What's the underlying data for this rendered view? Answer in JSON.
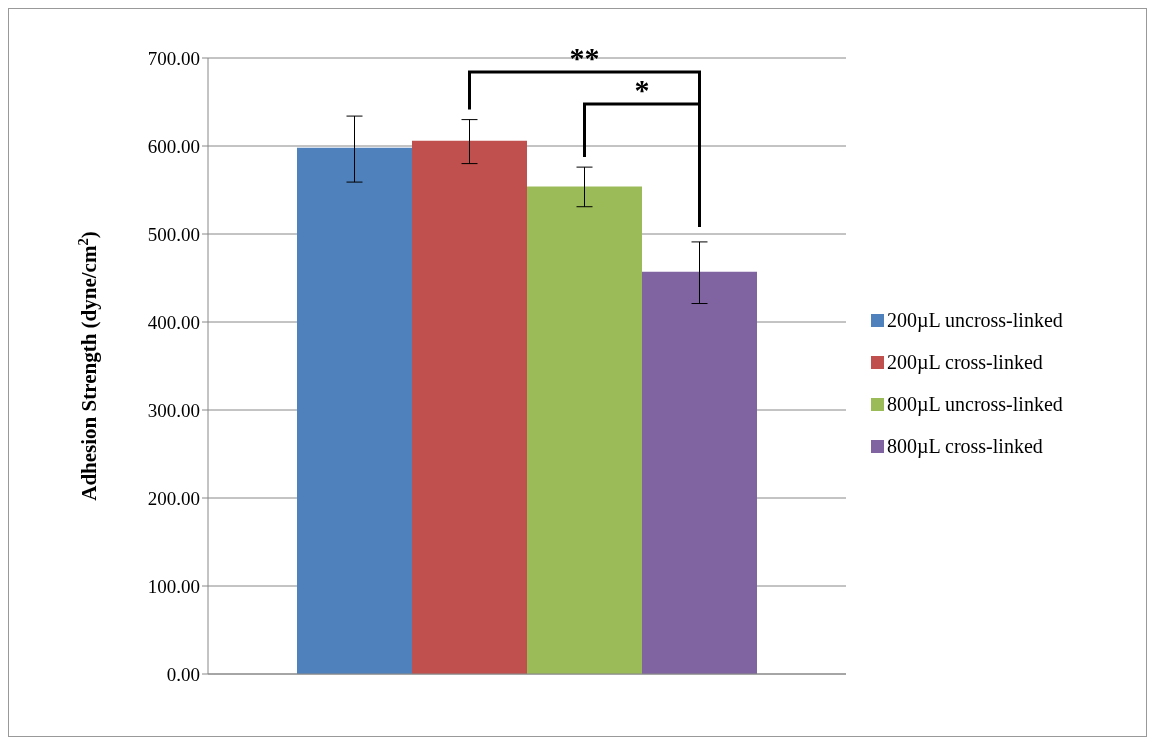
{
  "chart_data": {
    "type": "bar",
    "categories": [
      null
    ],
    "ylabel": "Adhesion Strength  (dyne/cm$^{2}$)",
    "series": [
      {
        "name": "200µL uncross-linked",
        "color": "#4f81bd",
        "values": [
          598
        ],
        "errors": [
          [
            559,
            634
          ]
        ]
      },
      {
        "name": "200µL cross-linked",
        "color": "#c0504d",
        "values": [
          606
        ],
        "errors": [
          [
            580,
            630
          ]
        ]
      },
      {
        "name": "800µL uncross-linked",
        "color": "#9bbb59",
        "values": [
          554
        ],
        "errors": [
          [
            531,
            576
          ]
        ]
      },
      {
        "name": "800µL cross-linked",
        "color": "#8064a2",
        "values": [
          457
        ],
        "errors": [
          [
            421,
            491
          ]
        ]
      }
    ],
    "ylim": [
      0,
      700
    ],
    "yticks": [
      {
        "value": 0,
        "label": "0.00"
      },
      {
        "value": 100,
        "label": "100.00"
      },
      {
        "value": 200,
        "label": "200.00"
      },
      {
        "value": 300,
        "label": "300.00"
      },
      {
        "value": 400,
        "label": "400.00"
      },
      {
        "value": 500,
        "label": "500.00"
      },
      {
        "value": 600,
        "label": "600.00"
      },
      {
        "value": 700,
        "label": "700.00"
      }
    ],
    "grid": "y",
    "legend": "right",
    "tick_labels": "y",
    "annotations": [
      "**",
      "*"
    ]
  }
}
